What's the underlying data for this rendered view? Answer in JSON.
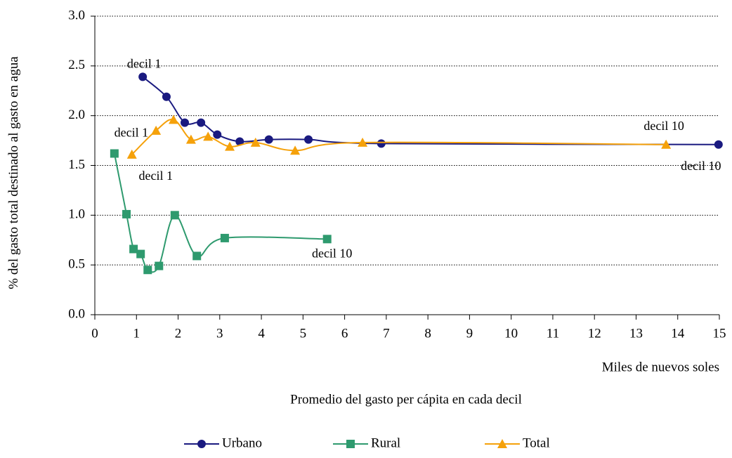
{
  "chart_data": {
    "type": "line",
    "ylabel": "% del gasto total destinado al gasto en agua",
    "xlabel_unit": "Miles de nuevos soles",
    "xlabel": "Promedio del gasto per cápita en cada decil",
    "xlim": [
      0,
      15
    ],
    "xticks": [
      0,
      1,
      2,
      3,
      4,
      5,
      6,
      7,
      8,
      9,
      10,
      11,
      12,
      13,
      14,
      15
    ],
    "ylim": [
      0,
      3
    ],
    "yticks": [
      {
        "value": 0,
        "label": "0.0"
      },
      0.5,
      {
        "value": 1,
        "label": "1.0"
      },
      1.5,
      {
        "value": 2,
        "label": "2.0"
      },
      2.5,
      {
        "value": 3,
        "label": "3.0"
      }
    ],
    "grid": true,
    "legend": "bottom",
    "series": [
      {
        "name": "Urbano",
        "color": "#1a1a80",
        "marker": "circle",
        "x": [
          1.15,
          1.72,
          2.16,
          2.55,
          2.94,
          3.48,
          4.18,
          5.13,
          6.88,
          14.98
        ],
        "values": [
          2.39,
          2.19,
          1.93,
          1.93,
          1.81,
          1.74,
          1.76,
          1.76,
          1.72,
          1.71
        ]
      },
      {
        "name": "Rural",
        "color": "#2e9a6e",
        "marker": "square",
        "x": [
          0.47,
          0.76,
          0.93,
          1.1,
          1.27,
          1.54,
          1.92,
          2.45,
          3.12,
          5.58
        ],
        "values": [
          1.62,
          1.01,
          0.66,
          0.61,
          0.45,
          0.49,
          1.0,
          0.59,
          0.77,
          0.76
        ]
      },
      {
        "name": "Total",
        "color": "#f5a10a",
        "marker": "triangle",
        "x": [
          0.89,
          1.47,
          1.89,
          2.31,
          2.72,
          3.24,
          3.86,
          4.81,
          6.43,
          13.72
        ],
        "values": [
          1.61,
          1.85,
          1.96,
          1.76,
          1.79,
          1.69,
          1.73,
          1.65,
          1.73,
          1.71
        ]
      }
    ],
    "annotations": [
      {
        "text": "decil 1",
        "series": 0,
        "point": 0
      },
      {
        "text": "decil 10",
        "series": 0,
        "point": 9
      },
      {
        "text": "decil 1",
        "series": 1,
        "point": 0
      },
      {
        "text": "decil 10",
        "series": 1,
        "point": 9
      },
      {
        "text": "decil 1",
        "series": 2,
        "point": 0
      },
      {
        "text": "decil 10",
        "series": 2,
        "point": 9
      }
    ]
  }
}
